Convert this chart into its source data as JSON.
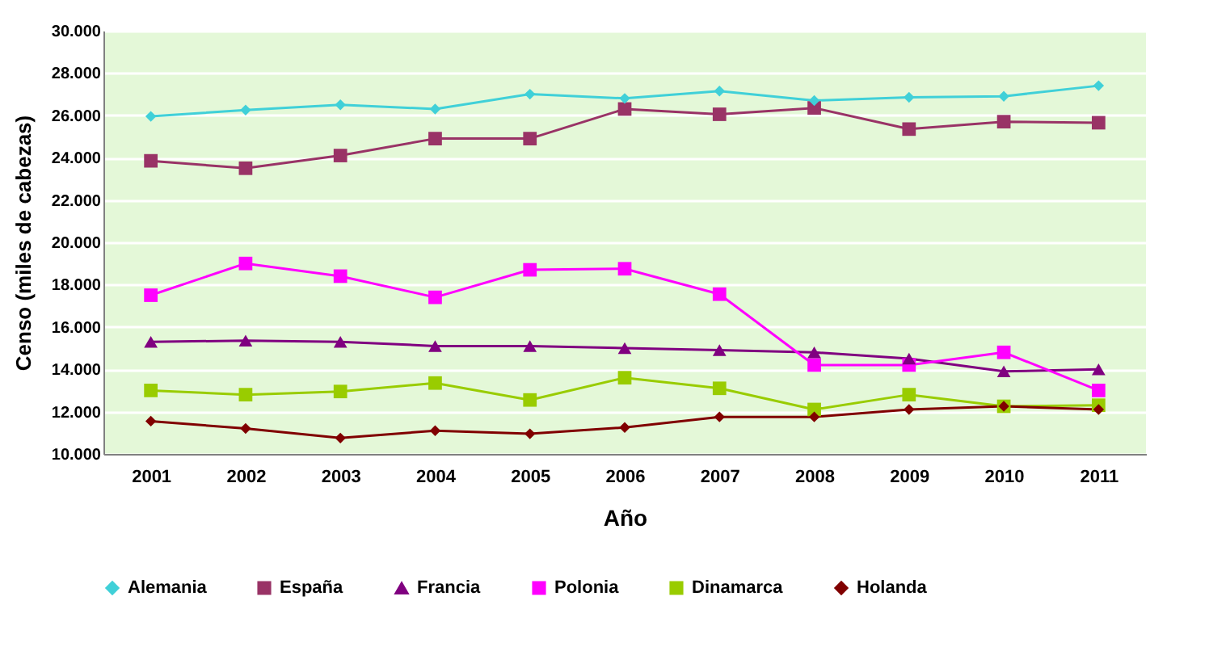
{
  "chart_data": {
    "type": "line",
    "xlabel": "Año",
    "ylabel": "Censo (miles de cabezas)",
    "categories": [
      "2001",
      "2002",
      "2003",
      "2004",
      "2005",
      "2006",
      "2007",
      "2008",
      "2009",
      "2010",
      "2011"
    ],
    "ylim": [
      10000,
      30000
    ],
    "yticks": [
      {
        "value": 10000,
        "label": "10.000"
      },
      {
        "value": 12000,
        "label": "12.000"
      },
      {
        "value": 14000,
        "label": "14.000"
      },
      {
        "value": 16000,
        "label": "16.000"
      },
      {
        "value": 18000,
        "label": "18.000"
      },
      {
        "value": 20000,
        "label": "20.000"
      },
      {
        "value": 22000,
        "label": "22.000"
      },
      {
        "value": 24000,
        "label": "24.000"
      },
      {
        "value": 26000,
        "label": "26.000"
      },
      {
        "value": 28000,
        "label": "28.000"
      },
      {
        "value": 30000,
        "label": "30.000"
      }
    ],
    "grid": "y",
    "legend": "bottom",
    "series": [
      {
        "name": "Alemania",
        "color": "#40d0d8",
        "marker": "diamond",
        "values": [
          25950,
          26250,
          26500,
          26300,
          27000,
          26800,
          27150,
          26700,
          26850,
          26900,
          27400
        ]
      },
      {
        "name": "España",
        "color": "#993366",
        "marker": "square",
        "values": [
          23850,
          23500,
          24100,
          24900,
          24900,
          26300,
          26050,
          26350,
          25350,
          25700,
          25650
        ]
      },
      {
        "name": "Francia",
        "color": "#800080",
        "marker": "triangle",
        "values": [
          15300,
          15350,
          15300,
          15100,
          15100,
          15000,
          14900,
          14800,
          14500,
          13900,
          14000
        ]
      },
      {
        "name": "Polonia",
        "color": "#ff00ff",
        "marker": "square",
        "values": [
          17500,
          19000,
          18400,
          17400,
          18700,
          18750,
          17550,
          14200,
          14200,
          14800,
          13000
        ]
      },
      {
        "name": "Dinamarca",
        "color": "#99cc00",
        "marker": "square",
        "values": [
          13000,
          12800,
          12950,
          13350,
          12550,
          13600,
          13100,
          12100,
          12800,
          12250,
          12300
        ]
      },
      {
        "name": "Holanda",
        "color": "#800000",
        "marker": "diamond",
        "values": [
          11550,
          11200,
          10750,
          11100,
          10950,
          11250,
          11750,
          11750,
          12100,
          12250,
          12100
        ]
      }
    ]
  }
}
